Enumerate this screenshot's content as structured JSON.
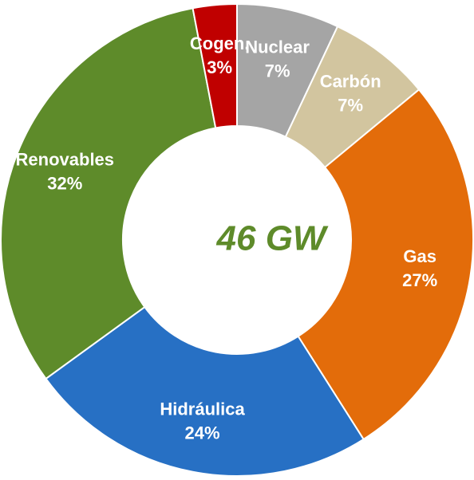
{
  "chart_data": {
    "type": "donut",
    "center_label": "46 GW",
    "categories": [
      "Nuclear",
      "Carbón",
      "Gas",
      "Hidráulica",
      "Renovables",
      "Cogen."
    ],
    "values": [
      7,
      7,
      27,
      24,
      32,
      3
    ],
    "value_labels": [
      "7%",
      "7%",
      "27%",
      "24%",
      "32%",
      "3%"
    ],
    "colors": [
      "#a5a5a5",
      "#d2c59f",
      "#e36c0a",
      "#2770c4",
      "#5e8b2a",
      "#c00000"
    ]
  }
}
